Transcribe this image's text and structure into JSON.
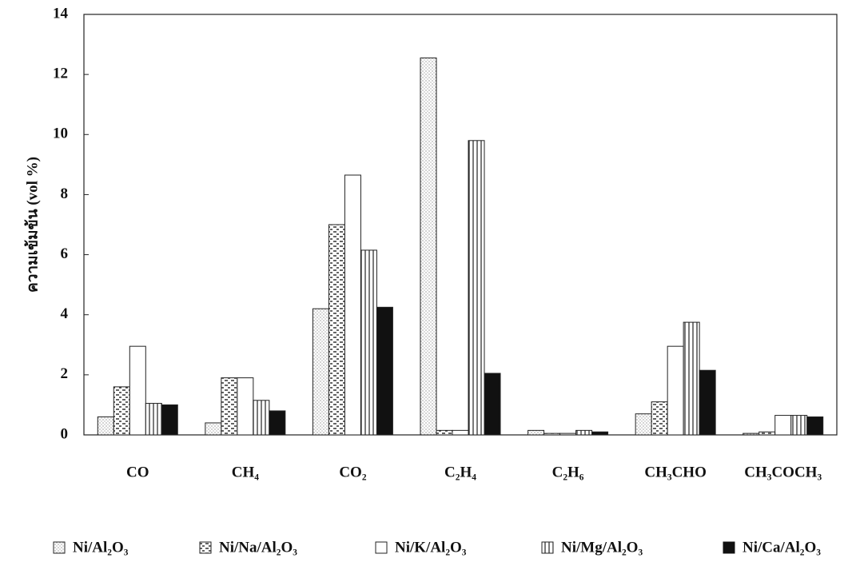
{
  "chart_data": {
    "type": "bar",
    "y_label": "ความเข้มข้น (vol %)",
    "categories": [
      "CO",
      "CH₄",
      "CO₂",
      "C₂H₄",
      "C₂H₆",
      "CH₃CHO",
      "CH₃COCH₃"
    ],
    "series": [
      {
        "name": "Ni/Al₂O₃",
        "color": "#ffffff",
        "values": [
          0.6,
          0.4,
          4.2,
          12.55,
          0.15,
          0.7,
          0.05
        ]
      },
      {
        "name": "Ni/Na/Al₂O₃",
        "color": "#ffffff",
        "values": [
          1.6,
          1.9,
          7.0,
          0.15,
          0.05,
          1.1,
          0.1
        ]
      },
      {
        "name": "Ni/K/Al₂O₃",
        "color": "#ffffff",
        "values": [
          2.95,
          1.9,
          8.65,
          0.15,
          0.05,
          2.95,
          0.65
        ]
      },
      {
        "name": "Ni/Mg/Al₂O₃",
        "color": "#ffffff",
        "values": [
          1.05,
          1.15,
          6.15,
          9.8,
          0.15,
          3.75,
          0.65
        ]
      },
      {
        "name": "Ni/Ca/Al₂O₃",
        "color": "#111111",
        "values": [
          1.0,
          0.8,
          4.25,
          2.05,
          0.1,
          2.15,
          0.6
        ]
      }
    ],
    "ylim": [
      0,
      14
    ],
    "yticks": [
      0,
      2,
      4,
      6,
      8,
      10,
      12,
      14
    ]
  }
}
